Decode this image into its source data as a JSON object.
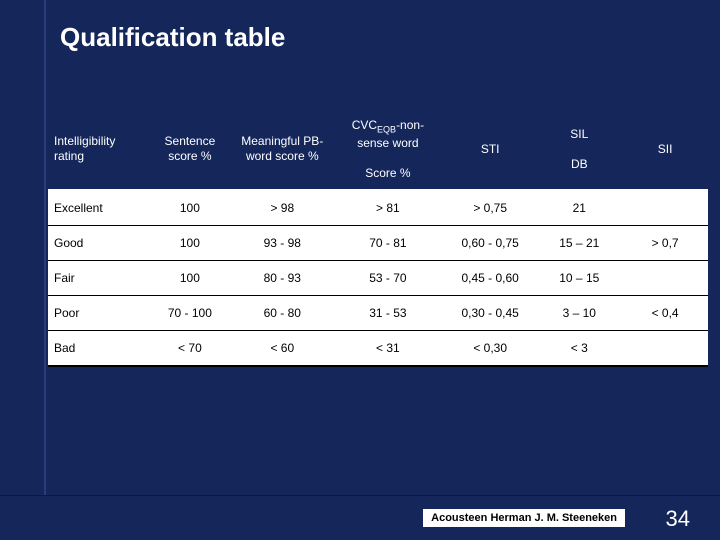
{
  "slide": {
    "title": "Qualification table",
    "background_color": "#14265a",
    "title_color": "#ffffff",
    "title_fontsize": 26
  },
  "table": {
    "type": "table",
    "header_bg": "#14265a",
    "header_fg": "#ffffff",
    "body_bg": "#ffffff",
    "body_fg": "#000000",
    "border_color": "#000000",
    "font_size": 12,
    "columns": [
      {
        "label": "Intelligibility rating",
        "width_pct": 15,
        "align": "left"
      },
      {
        "label": "Sentence score %",
        "width_pct": 13,
        "align": "center"
      },
      {
        "label": "Meaningful PB-word score %",
        "width_pct": 15,
        "align": "center"
      },
      {
        "label_top": "CVC",
        "label_sub": "EQB",
        "label_after": "-non-sense word",
        "label_bottom": "Score %",
        "width_pct": 17,
        "align": "center"
      },
      {
        "label": "STI",
        "width_pct": 14,
        "align": "center"
      },
      {
        "label_top": "SIL",
        "label_bottom": "DB",
        "width_pct": 13,
        "align": "center"
      },
      {
        "label": "SII",
        "width_pct": 13,
        "align": "center"
      }
    ],
    "rows": [
      {
        "rating": "Excellent",
        "sentence": "100",
        "pb": "> 98",
        "cvc": "> 81",
        "sti": "> 0,75",
        "sil": "21",
        "sii": ""
      },
      {
        "rating": "Good",
        "sentence": "100",
        "pb": "93 - 98",
        "cvc": "70 - 81",
        "sti": "0,60 - 0,75",
        "sil": "15 – 21",
        "sii": "> 0,7"
      },
      {
        "rating": "Fair",
        "sentence": "100",
        "pb": "80 - 93",
        "cvc": "53 - 70",
        "sti": "0,45 - 0,60",
        "sil": "10 – 15",
        "sii": ""
      },
      {
        "rating": "Poor",
        "sentence": "70 - 100",
        "pb": "60 - 80",
        "cvc": "31 - 53",
        "sti": "0,30 - 0,45",
        "sil": "3 – 10",
        "sii": "< 0,4"
      },
      {
        "rating": "Bad",
        "sentence": "< 70",
        "pb": "< 60",
        "cvc": "< 31",
        "sti": "< 0,30",
        "sil": "< 3",
        "sii": ""
      }
    ]
  },
  "footer": {
    "credit": "Acousteen Herman J. M. Steeneken",
    "page_number": "34",
    "credit_bg": "#ffffff",
    "credit_fg": "#000000",
    "page_fg": "#ffffff"
  }
}
